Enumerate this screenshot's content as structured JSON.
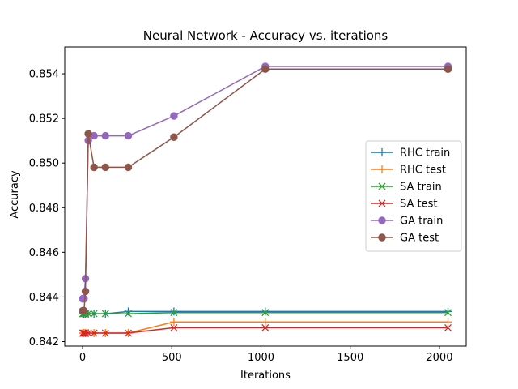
{
  "chart_data": {
    "type": "line",
    "title": "Neural Network - Accuracy vs. iterations",
    "xlabel": "Iterations",
    "ylabel": "Accuracy",
    "xlim": [
      -100,
      2150
    ],
    "ylim": [
      0.8418,
      0.8552
    ],
    "xticks": [
      0,
      500,
      1000,
      1500,
      2000
    ],
    "yticks": [
      0.842,
      0.844,
      0.846,
      0.848,
      0.85,
      0.852,
      0.854
    ],
    "ytick_labels": [
      "0.842",
      "0.844",
      "0.846",
      "0.848",
      "0.850",
      "0.852",
      "0.854"
    ],
    "grid": false,
    "legend_position": "center-right",
    "x": [
      1,
      2,
      4,
      8,
      16,
      32,
      64,
      128,
      256,
      512,
      1024,
      2048
    ],
    "series": [
      {
        "name": "RHC train",
        "color": "#1f77b4",
        "marker": "plus",
        "values": [
          0.84325,
          0.84325,
          0.84325,
          0.84325,
          0.84325,
          0.84325,
          0.84325,
          0.84325,
          0.84335,
          0.84335,
          0.84335,
          0.84335
        ]
      },
      {
        "name": "RHC test",
        "color": "#ff7f0e",
        "marker": "plus",
        "values": [
          0.84238,
          0.84238,
          0.84238,
          0.84238,
          0.84238,
          0.84238,
          0.84238,
          0.84238,
          0.84238,
          0.84288,
          0.84288,
          0.84288
        ]
      },
      {
        "name": "SA train",
        "color": "#2ca02c",
        "marker": "x",
        "values": [
          0.84325,
          0.84325,
          0.84325,
          0.84325,
          0.84325,
          0.84325,
          0.84325,
          0.84325,
          0.84325,
          0.8433,
          0.8433,
          0.8433
        ]
      },
      {
        "name": "SA test",
        "color": "#d62728",
        "marker": "x",
        "values": [
          0.84238,
          0.84238,
          0.84238,
          0.84238,
          0.84238,
          0.84238,
          0.84238,
          0.84238,
          0.84238,
          0.84262,
          0.84262,
          0.84262
        ]
      },
      {
        "name": "GA train",
        "color": "#9467bd",
        "marker": "circle",
        "values": [
          0.84392,
          0.84392,
          0.84392,
          0.84392,
          0.84482,
          0.85101,
          0.85122,
          0.85122,
          0.85122,
          0.85211,
          0.85433,
          0.85433
        ]
      },
      {
        "name": "GA test",
        "color": "#8c564b",
        "marker": "circle",
        "values": [
          0.84338,
          0.84338,
          0.84338,
          0.84338,
          0.84425,
          0.85131,
          0.84981,
          0.84981,
          0.84981,
          0.85116,
          0.85421,
          0.85421
        ]
      }
    ]
  }
}
